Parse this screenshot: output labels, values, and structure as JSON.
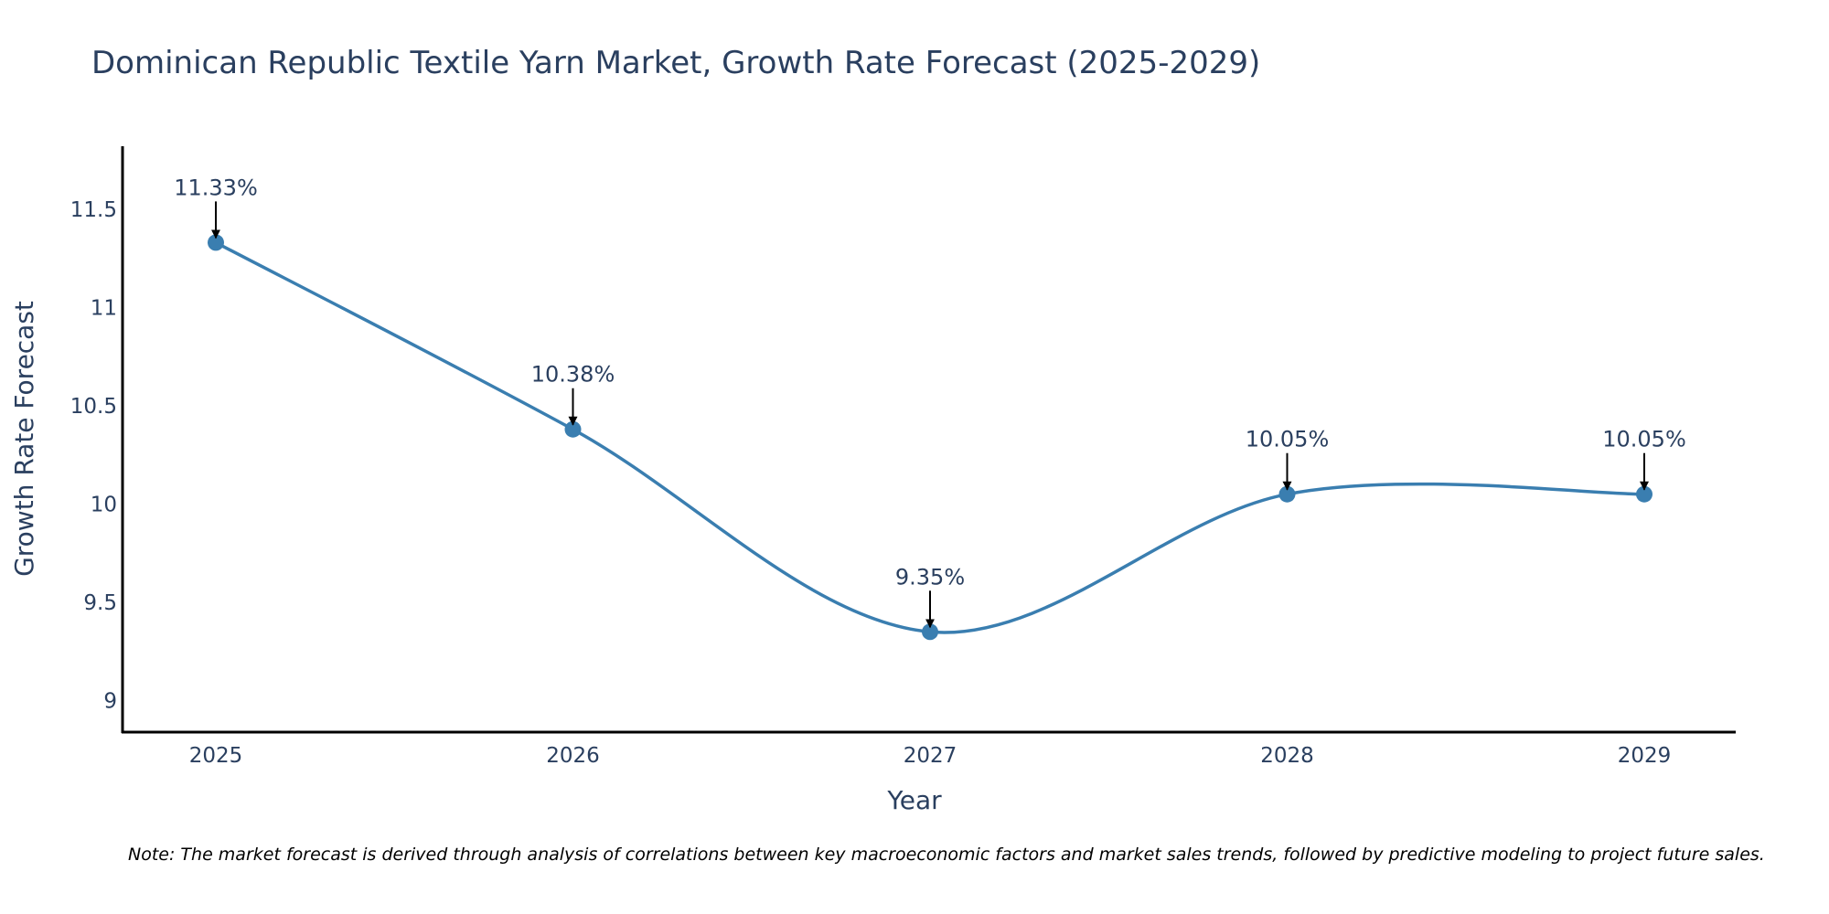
{
  "chart_data": {
    "type": "line",
    "title": "Dominican Republic Textile Yarn Market, Growth Rate Forecast (2025-2029)",
    "xlabel": "Year",
    "ylabel": "Growth Rate Forecast",
    "categories": [
      "2025",
      "2026",
      "2027",
      "2028",
      "2029"
    ],
    "series": [
      {
        "name": "Growth Rate Forecast",
        "values": [
          11.33,
          10.38,
          9.35,
          10.05,
          10.05
        ],
        "labels": [
          "11.33%",
          "10.38%",
          "9.35%",
          "10.05%",
          "10.05%"
        ]
      }
    ],
    "ylim": [
      8.84,
      11.82
    ],
    "yticks": [
      9,
      9.5,
      10,
      10.5,
      11,
      11.5
    ],
    "ytick_labels": [
      "9",
      "9.5",
      "10",
      "10.5",
      "11",
      "11.5"
    ],
    "grid": false,
    "line_color": "#3a7eb0",
    "marker_color": "#3a7eb0",
    "annotation_arrow_color": "#000000",
    "note": "Note: The market forecast is derived through analysis of correlations between key macroeconomic factors and market sales trends, followed by predictive modeling to project future sales."
  }
}
